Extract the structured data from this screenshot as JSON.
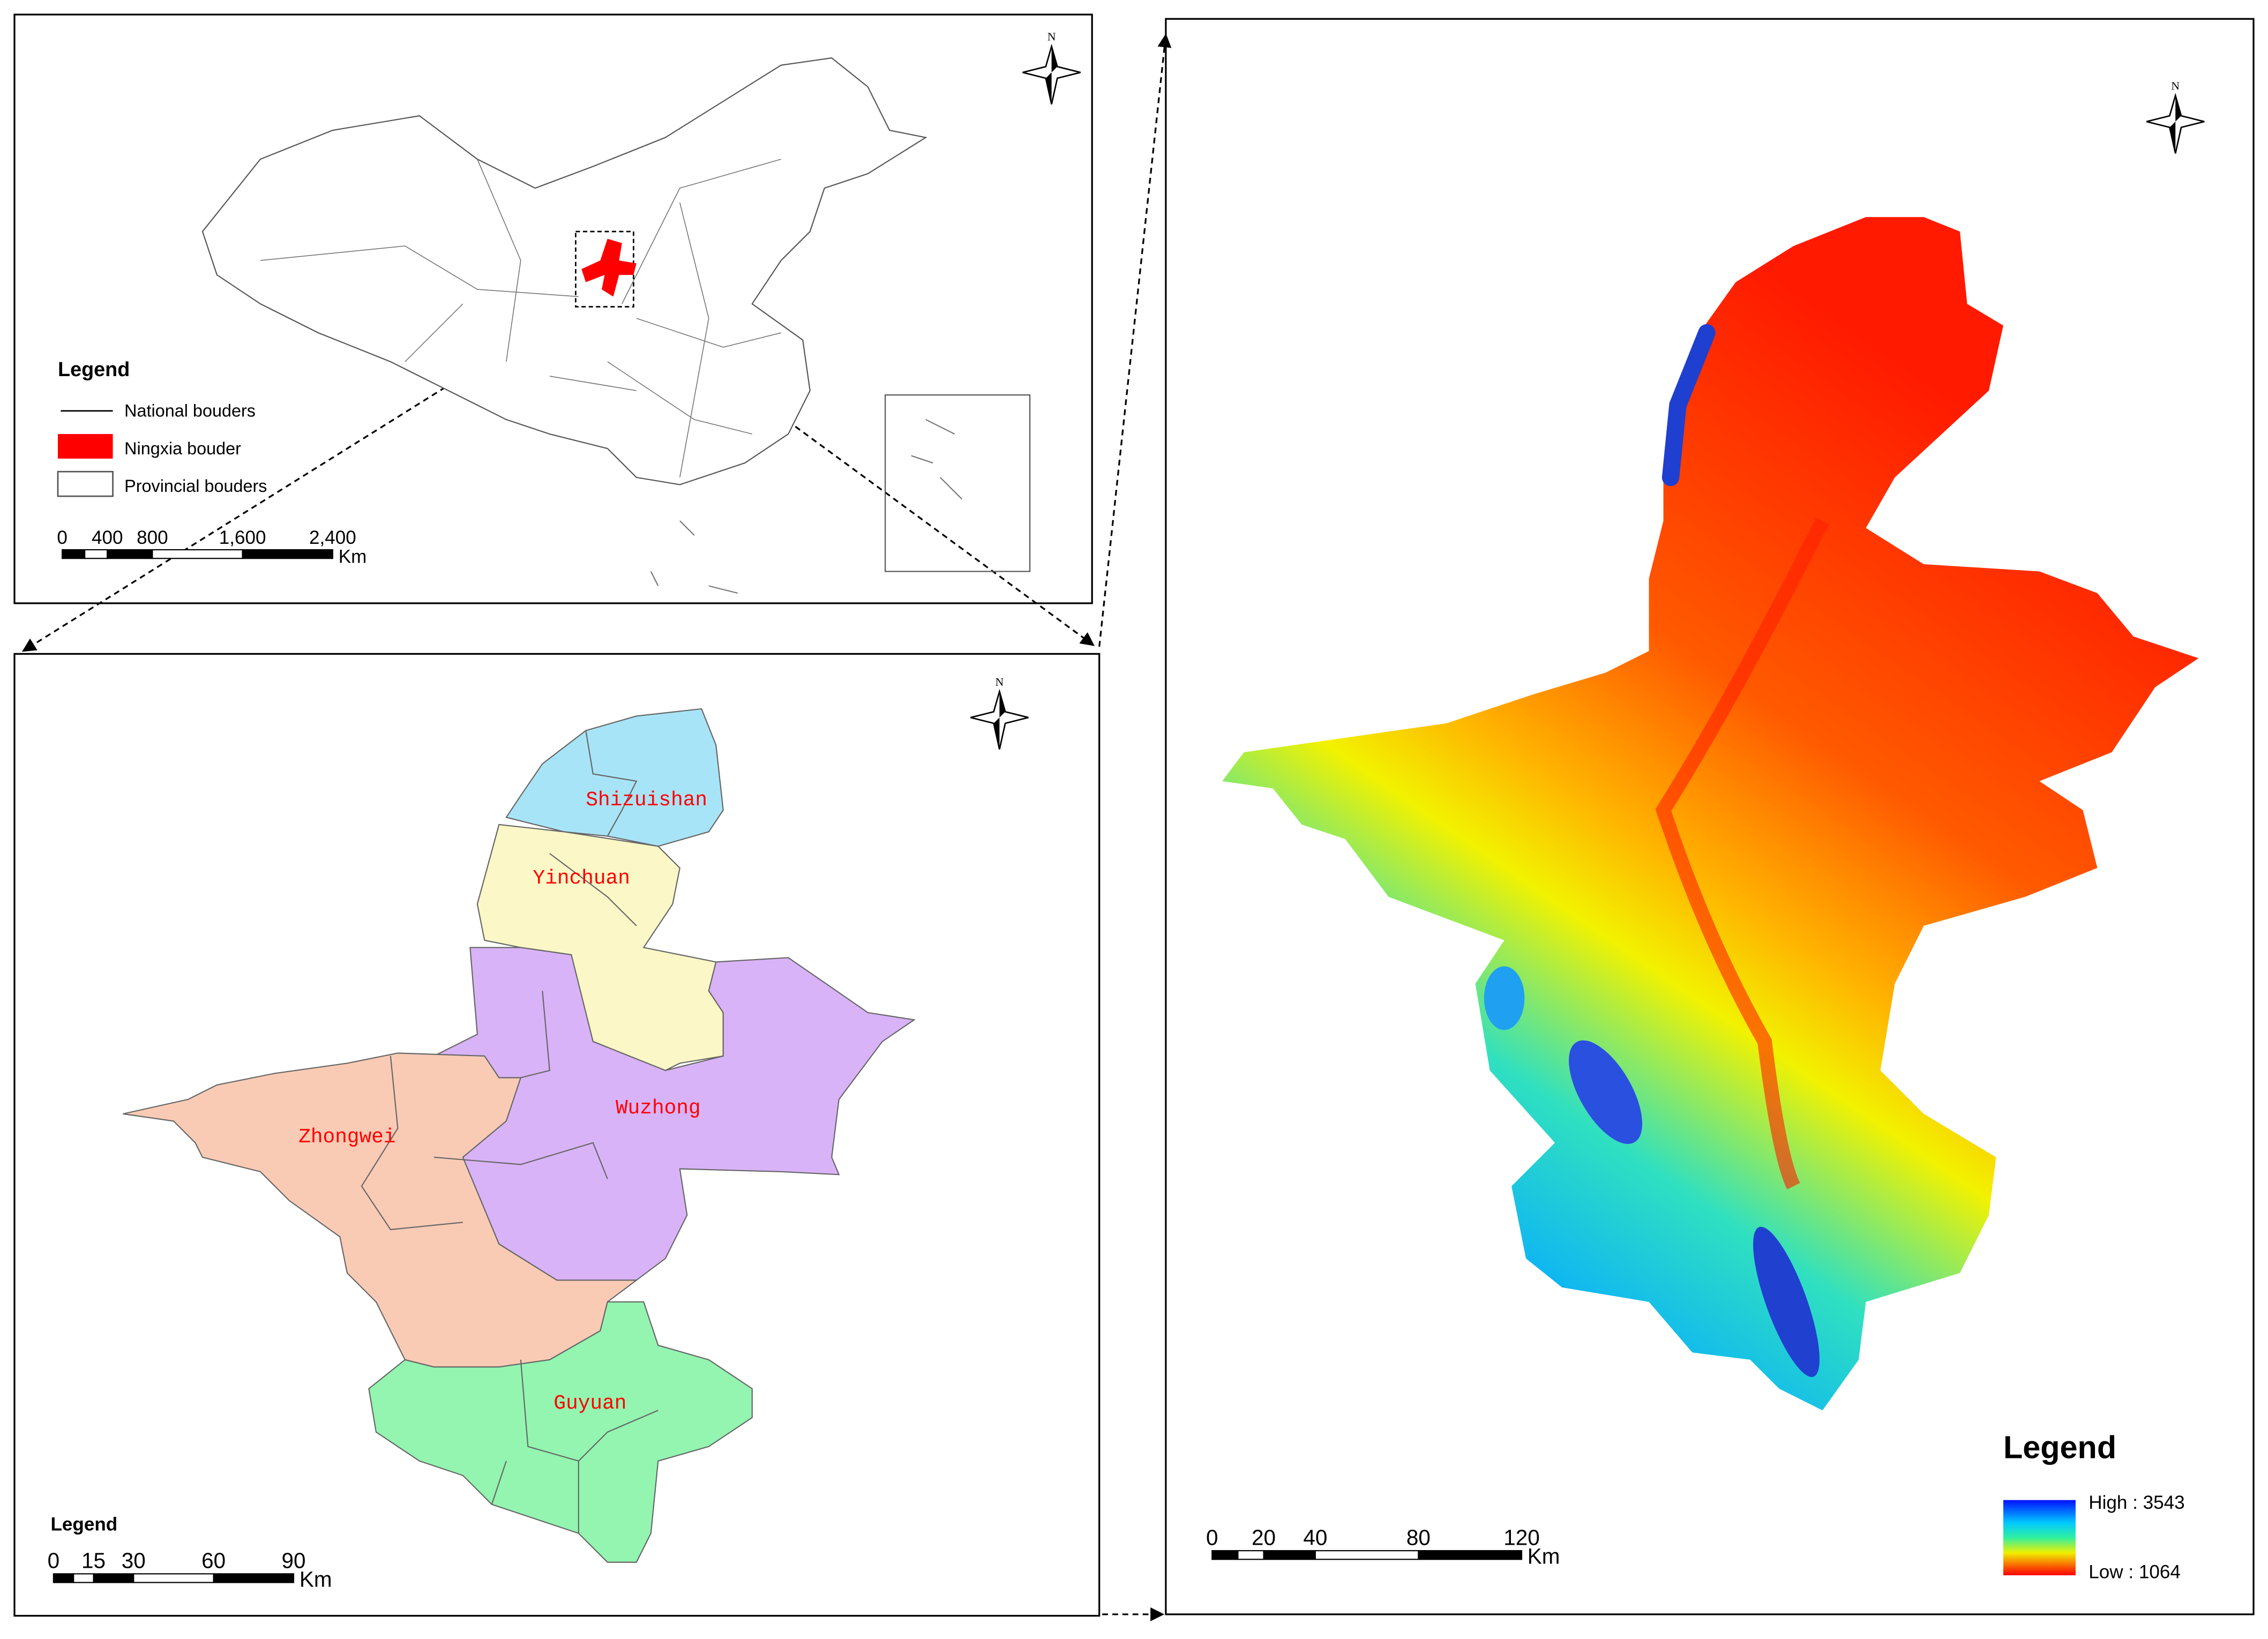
{
  "panels": [
    {
      "north": "N",
      "legend": {
        "title": "Legend",
        "items": [
          "National bouders",
          "Ningxia bouder",
          "Provincial bouders"
        ]
      },
      "scale_bar": {
        "labels": [
          "0",
          "400",
          "800",
          "1,600",
          "2,400"
        ],
        "unit": "Km"
      }
    },
    {
      "north": "N",
      "regions": [
        "Shizuishan",
        "Yinchuan",
        "Wuzhong",
        "Zhongwei",
        "Guyuan"
      ],
      "legend": {
        "title": "Legend"
      },
      "scale_bar": {
        "labels": [
          "0",
          "15",
          "30",
          "60",
          "90"
        ],
        "unit": "Km"
      }
    },
    {
      "north": "N",
      "legend": {
        "title": "Legend",
        "high": "High : 3543",
        "low": "Low : 1064"
      },
      "scale_bar": {
        "labels": [
          "0",
          "20",
          "40",
          "80",
          "120"
        ],
        "unit": "Km"
      }
    }
  ]
}
